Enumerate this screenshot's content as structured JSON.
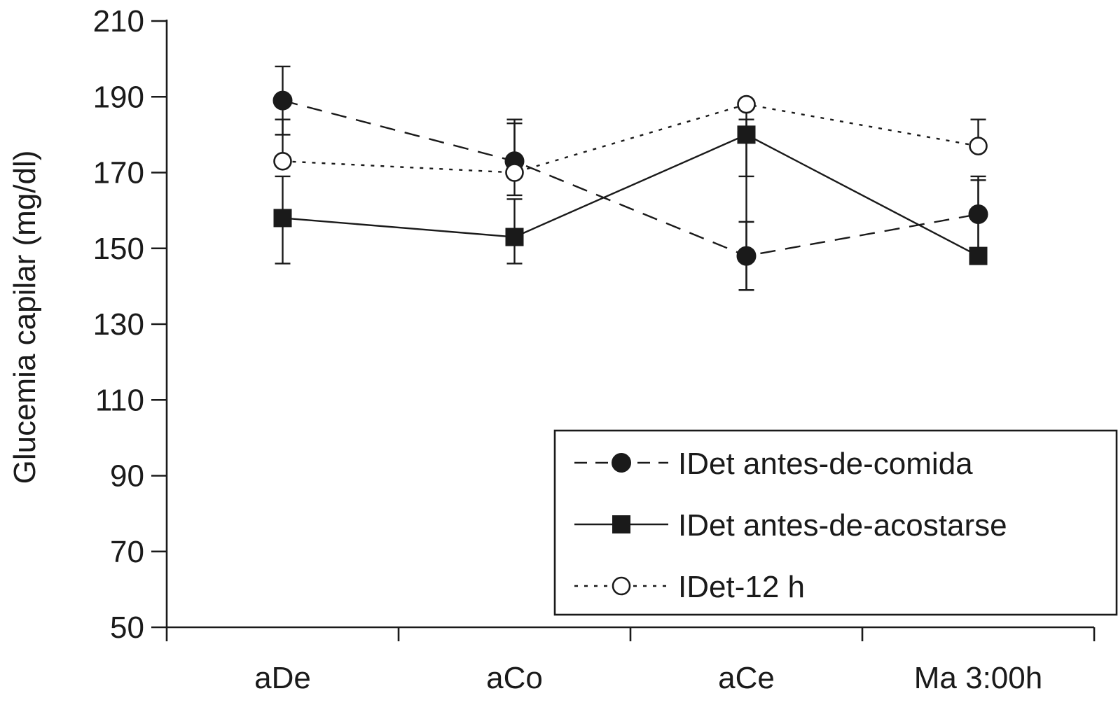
{
  "chart_data": {
    "type": "line",
    "title": "",
    "xlabel": "",
    "ylabel": "Glucemia capilar (mg/dl)",
    "categories": [
      "aDe",
      "aCo",
      "aCe",
      "Ma 3:00h"
    ],
    "ylim": [
      50,
      210
    ],
    "yticks": [
      50,
      70,
      90,
      110,
      130,
      150,
      170,
      190,
      210
    ],
    "grid": false,
    "legend_position": "bottom-right",
    "series": [
      {
        "name": "IDet antes-de-comida",
        "line_style": "dashed",
        "marker": "filled-circle",
        "values": [
          189,
          173,
          148,
          159
        ],
        "error_upper": [
          198,
          184,
          157,
          168
        ],
        "error_lower": [
          180,
          164,
          139,
          150
        ]
      },
      {
        "name": "IDet antes-de-acostarse",
        "line_style": "solid",
        "marker": "filled-square",
        "values": [
          158,
          153,
          180,
          148
        ],
        "error_upper": [
          169,
          163,
          184,
          169
        ],
        "error_lower": [
          146,
          146,
          139,
          148
        ]
      },
      {
        "name": "IDet-12 h",
        "line_style": "dotted",
        "marker": "open-circle",
        "values": [
          173,
          170,
          188,
          177
        ],
        "error_upper": [
          184,
          183,
          188,
          184
        ],
        "error_lower": [
          173,
          170,
          169,
          177
        ]
      }
    ]
  }
}
